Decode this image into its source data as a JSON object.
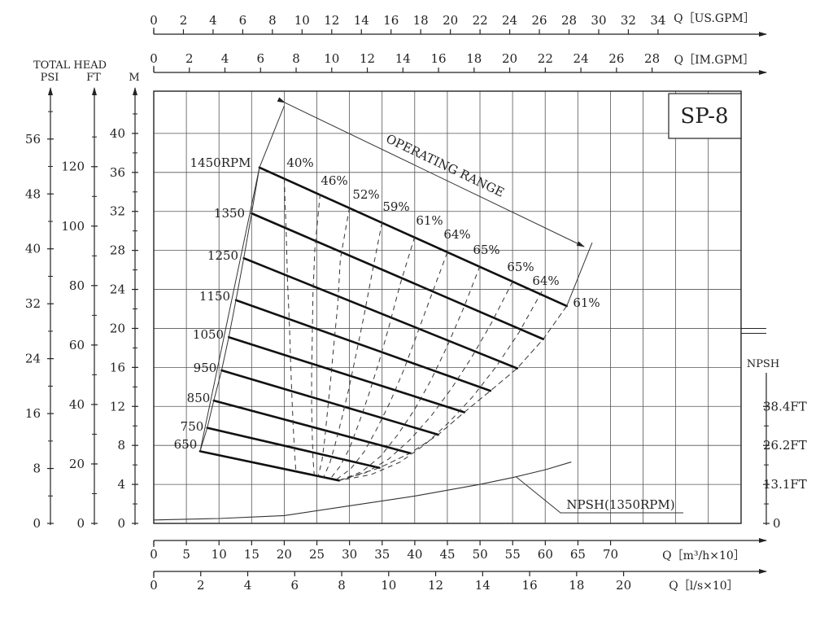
{
  "chart_data": {
    "type": "line",
    "title": "SP-8",
    "operating_range_label": "OPERATING RANGE",
    "axes": {
      "q_m3h_x10": {
        "label": "Q［m³/h×10］",
        "ticks": [
          0,
          5,
          10,
          15,
          20,
          25,
          30,
          35,
          40,
          45,
          50,
          55,
          60,
          65,
          70
        ],
        "range": [
          0,
          90
        ]
      },
      "q_ls_x10": {
        "label": "Q［l/s×10］",
        "ticks": [
          0,
          2,
          4,
          6,
          8,
          10,
          12,
          14,
          16,
          18,
          20
        ],
        "range": [
          0,
          25
        ]
      },
      "q_us_gpm": {
        "label": "Q［US.GPM］",
        "ticks": [
          0,
          2,
          4,
          6,
          8,
          10,
          12,
          14,
          16,
          18,
          20,
          22,
          24,
          26,
          28,
          30,
          32,
          34
        ],
        "range": [
          0,
          39.6
        ]
      },
      "q_im_gpm": {
        "label": "Q［IM.GPM］",
        "ticks": [
          0,
          2,
          4,
          6,
          8,
          10,
          12,
          14,
          16,
          18,
          20,
          22,
          24,
          26,
          28
        ],
        "range": [
          0,
          33
        ]
      },
      "head_m": {
        "label": "M",
        "ticks": [
          0,
          4,
          8,
          12,
          16,
          20,
          24,
          28,
          32,
          36,
          40
        ],
        "range": [
          0,
          44
        ]
      },
      "head_ft": {
        "label": "FT",
        "ticks": [
          0,
          20,
          40,
          60,
          80,
          100,
          120
        ],
        "range": [
          0,
          144.3
        ]
      },
      "head_psi": {
        "label": "PSI",
        "ticks": [
          0,
          8,
          16,
          24,
          32,
          40,
          48,
          56
        ],
        "range": [
          0,
          62.5
        ]
      },
      "total_head_label": "TOTAL HEAD",
      "npsh_label": "NPSH",
      "npsh_ticks": [
        "0",
        "13.1FT",
        "26.2FT",
        "38.4FT"
      ]
    },
    "xlabel": "Q［m³/h×10］",
    "ylabel": "M",
    "grid": true,
    "speed_labels": [
      "1450RPM",
      "1350",
      "1250",
      "1150",
      "1050",
      "950",
      "850",
      "750",
      "650"
    ],
    "series": [
      {
        "name": "1450RPM",
        "x": [
          16.2,
          63.3
        ],
        "y": [
          36.5,
          22.3
        ]
      },
      {
        "name": "1350",
        "x": [
          15.0,
          59.7
        ],
        "y": [
          31.8,
          18.9
        ]
      },
      {
        "name": "1250",
        "x": [
          13.8,
          55.7
        ],
        "y": [
          27.2,
          15.9
        ]
      },
      {
        "name": "1150",
        "x": [
          12.6,
          51.6
        ],
        "y": [
          22.9,
          13.6
        ]
      },
      {
        "name": "1050",
        "x": [
          11.5,
          47.6
        ],
        "y": [
          19.1,
          11.4
        ]
      },
      {
        "name": "950",
        "x": [
          10.4,
          43.6
        ],
        "y": [
          15.7,
          9.1
        ]
      },
      {
        "name": "850",
        "x": [
          9.2,
          39.3
        ],
        "y": [
          12.6,
          7.2
        ]
      },
      {
        "name": "750",
        "x": [
          8.2,
          34.6
        ],
        "y": [
          9.8,
          5.7
        ]
      },
      {
        "name": "650",
        "x": [
          7.1,
          28.4
        ],
        "y": [
          7.4,
          4.4
        ]
      }
    ],
    "efficiency_labels": [
      "40%",
      "46%",
      "52%",
      "59%",
      "61%",
      "64%",
      "65%",
      "65%",
      "64%",
      "61%"
    ],
    "efficiency_curves": [
      {
        "x": [
          20.0,
          20.3,
          20.5,
          20.8,
          21.0,
          21.2,
          21.4,
          21.6,
          21.8
        ],
        "y": [
          35.4,
          29.8,
          24.9,
          20.3,
          16.2,
          12.6,
          9.6,
          7.2,
          5.2
        ]
      },
      {
        "x": [
          25.5,
          24.7,
          24.4,
          24.3,
          24.2,
          24.2,
          24.3,
          24.4,
          24.6
        ],
        "y": [
          33.8,
          28.2,
          23.5,
          19.2,
          15.3,
          11.9,
          9.0,
          6.8,
          4.9
        ]
      },
      {
        "x": [
          30.0,
          28.6,
          28.2,
          27.6,
          27.1,
          26.6,
          26.2,
          25.8,
          25.2
        ],
        "y": [
          32.4,
          27.1,
          22.4,
          18.3,
          14.6,
          11.3,
          8.6,
          6.5,
          4.8
        ]
      },
      {
        "x": [
          35.0,
          33.5,
          32.2,
          31.0,
          29.9,
          28.8,
          27.8,
          27.0,
          26.0
        ],
        "y": [
          30.9,
          25.8,
          21.2,
          17.3,
          13.8,
          10.7,
          8.1,
          6.2,
          4.7
        ]
      },
      {
        "x": [
          40.0,
          37.8,
          36.1,
          34.5,
          32.9,
          31.4,
          30.0,
          28.6,
          27.1
        ],
        "y": [
          29.4,
          24.6,
          20.3,
          16.5,
          13.1,
          10.2,
          7.7,
          5.9,
          4.6
        ]
      },
      {
        "x": [
          45.0,
          42.5,
          40.3,
          38.3,
          36.2,
          34.2,
          32.2,
          30.2,
          28.0
        ],
        "y": [
          27.8,
          23.3,
          19.3,
          15.7,
          12.4,
          9.7,
          7.3,
          5.6,
          4.5
        ]
      },
      {
        "x": [
          50.0,
          47.5,
          45.0,
          42.5,
          40.0,
          37.4,
          34.8,
          31.9,
          28.4
        ],
        "y": [
          26.4,
          22.1,
          18.2,
          14.7,
          11.7,
          9.1,
          6.9,
          5.3,
          4.4
        ]
      },
      {
        "x": [
          55.0,
          51.8,
          48.7,
          45.6,
          42.5,
          39.3,
          36.0,
          32.5,
          28.4
        ],
        "y": [
          24.8,
          20.6,
          17.0,
          13.8,
          11.0,
          8.6,
          6.6,
          5.2,
          4.4
        ]
      },
      {
        "x": [
          59.5,
          56.0,
          52.5,
          48.9,
          45.3,
          41.6,
          37.8,
          33.3,
          28.4
        ],
        "y": [
          23.8,
          19.6,
          16.1,
          13.0,
          10.4,
          8.1,
          6.3,
          5.0,
          4.4
        ]
      },
      {
        "x": [
          63.3,
          59.7,
          55.7,
          51.6,
          47.6,
          43.6,
          39.3,
          34.6,
          28.4
        ],
        "y": [
          22.3,
          18.9,
          15.9,
          13.6,
          11.4,
          9.1,
          7.2,
          5.7,
          4.4
        ]
      }
    ],
    "annotations": [
      "NPSH(1350RPM)"
    ],
    "npsh_curve": {
      "name": "NPSH(1350RPM)",
      "x": [
        0,
        10,
        20,
        30,
        40,
        50,
        55,
        60,
        64
      ],
      "y": [
        0.35,
        0.5,
        0.8,
        1.8,
        2.8,
        4.0,
        4.7,
        5.5,
        6.3
      ]
    }
  }
}
